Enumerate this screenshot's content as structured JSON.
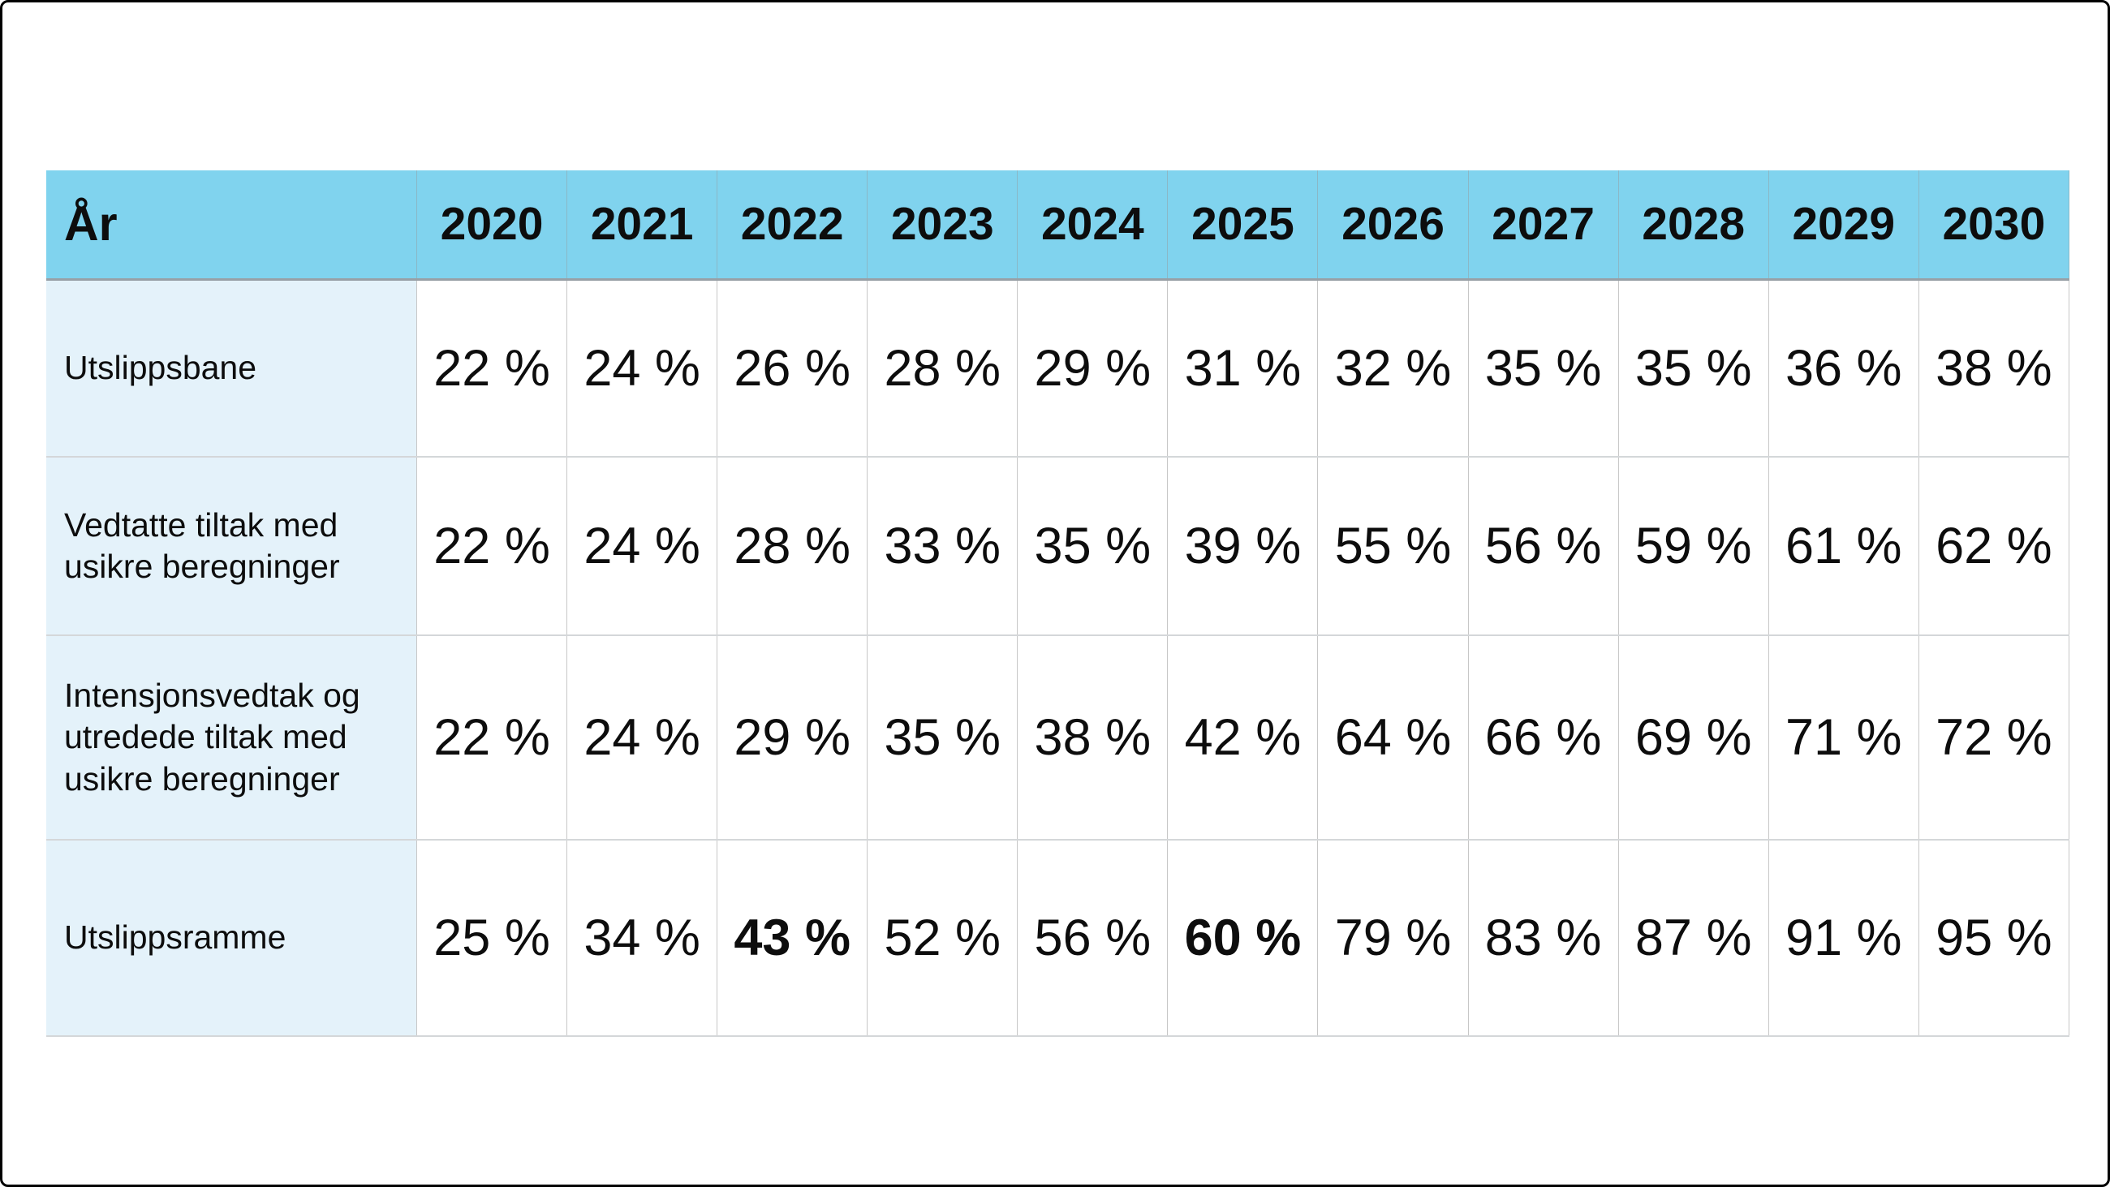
{
  "table": {
    "header": {
      "label": "År",
      "years": [
        "2020",
        "2021",
        "2022",
        "2023",
        "2024",
        "2025",
        "2026",
        "2027",
        "2028",
        "2029",
        "2030"
      ]
    },
    "rows": [
      {
        "label": "Utslippsbane",
        "values": [
          "22 %",
          "24 %",
          "26 %",
          "28 %",
          "29 %",
          "31 %",
          "32 %",
          "35 %",
          "35 %",
          "36 %",
          "38 %"
        ],
        "bold_indices": []
      },
      {
        "label": "Vedtatte tiltak med usikre beregninger",
        "values": [
          "22 %",
          "24 %",
          "28 %",
          "33 %",
          "35 %",
          "39 %",
          "55 %",
          "56 %",
          "59 %",
          "61 %",
          "62 %"
        ],
        "bold_indices": []
      },
      {
        "label": "Intensjonsvedtak og utredede tiltak med usikre beregninger",
        "values": [
          "22 %",
          "24 %",
          "29 %",
          "35 %",
          "38 %",
          "42 %",
          "64 %",
          "66 %",
          "69 %",
          "71 %",
          "72 %"
        ],
        "bold_indices": []
      },
      {
        "label": "Utslippsramme",
        "values": [
          "25 %",
          "34 %",
          "43 %",
          "52 %",
          "56 %",
          "60 %",
          "79 %",
          "83 %",
          "87 %",
          "91 %",
          "95 %"
        ],
        "bold_indices": [
          2,
          5
        ]
      }
    ]
  },
  "colors": {
    "header_background": "#80D3EE",
    "row_label_background": "#E4F2FA",
    "grid_line": "#C7C7C7",
    "header_underline": "#98A0A6",
    "text": "#0D0D0D"
  },
  "chart_data": {
    "type": "table",
    "x_header": "År",
    "unit": "%",
    "categories": [
      "2020",
      "2021",
      "2022",
      "2023",
      "2024",
      "2025",
      "2026",
      "2027",
      "2028",
      "2029",
      "2030"
    ],
    "series": [
      {
        "name": "Utslippsbane",
        "values": [
          22,
          24,
          26,
          28,
          29,
          31,
          32,
          35,
          35,
          36,
          38
        ]
      },
      {
        "name": "Vedtatte tiltak med usikre beregninger",
        "values": [
          22,
          24,
          28,
          33,
          35,
          39,
          55,
          56,
          59,
          61,
          62
        ]
      },
      {
        "name": "Intensjonsvedtak og utredede tiltak med usikre beregninger",
        "values": [
          22,
          24,
          29,
          35,
          38,
          42,
          64,
          66,
          69,
          71,
          72
        ]
      },
      {
        "name": "Utslippsramme",
        "values": [
          25,
          34,
          43,
          52,
          56,
          60,
          79,
          83,
          87,
          91,
          95
        ]
      }
    ],
    "emphasized_cells": [
      {
        "series": "Utslippsramme",
        "year": "2022",
        "value": 43
      },
      {
        "series": "Utslippsramme",
        "year": "2025",
        "value": 60
      }
    ]
  }
}
